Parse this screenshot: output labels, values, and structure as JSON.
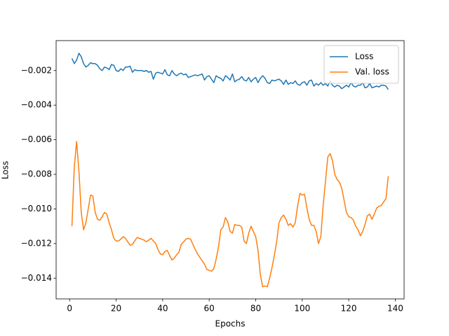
{
  "chart_data": {
    "type": "line",
    "xlabel": "Epochs",
    "ylabel": "Loss",
    "x": [
      1,
      2,
      3,
      4,
      5,
      6,
      7,
      8,
      9,
      10,
      11,
      12,
      13,
      14,
      15,
      16,
      17,
      18,
      19,
      20,
      21,
      22,
      23,
      24,
      25,
      26,
      27,
      28,
      29,
      30,
      31,
      32,
      33,
      34,
      35,
      36,
      37,
      38,
      39,
      40,
      41,
      42,
      43,
      44,
      45,
      46,
      47,
      48,
      49,
      50,
      51,
      52,
      53,
      54,
      55,
      56,
      57,
      58,
      59,
      60,
      61,
      62,
      63,
      64,
      65,
      66,
      67,
      68,
      69,
      70,
      71,
      72,
      73,
      74,
      75,
      76,
      77,
      78,
      79,
      80,
      81,
      82,
      83,
      84,
      85,
      86,
      87,
      88,
      89,
      90,
      91,
      92,
      93,
      94,
      95,
      96,
      97,
      98,
      99,
      100,
      101,
      102,
      103,
      104,
      105,
      106,
      107,
      108,
      109,
      110,
      111,
      112,
      113,
      114,
      115,
      116,
      117,
      118,
      119,
      120,
      121,
      122,
      123,
      124,
      125,
      126,
      127,
      128,
      129,
      130,
      131,
      132,
      133,
      134,
      135,
      136,
      137
    ],
    "series": [
      {
        "name": "Loss",
        "color": "#1f77b4",
        "values": [
          -0.0013,
          -0.0016,
          -0.0014,
          -0.001,
          -0.0012,
          -0.0016,
          -0.0018,
          -0.0017,
          -0.00155,
          -0.0016,
          -0.0016,
          -0.0017,
          -0.0019,
          -0.002,
          -0.0018,
          -0.00185,
          -0.00195,
          -0.00165,
          -0.0017,
          -0.002,
          -0.00205,
          -0.0019,
          -0.002,
          -0.0018,
          -0.0018,
          -0.00175,
          -0.0021,
          -0.00195,
          -0.002,
          -0.002,
          -0.002,
          -0.00205,
          -0.002,
          -0.0021,
          -0.00205,
          -0.0025,
          -0.00215,
          -0.0021,
          -0.00215,
          -0.0022,
          -0.00195,
          -0.00225,
          -0.0023,
          -0.002,
          -0.0022,
          -0.0023,
          -0.0022,
          -0.00215,
          -0.00225,
          -0.0022,
          -0.0024,
          -0.00235,
          -0.0023,
          -0.00225,
          -0.0023,
          -0.00225,
          -0.0022,
          -0.00255,
          -0.00235,
          -0.0023,
          -0.0025,
          -0.0027,
          -0.0023,
          -0.0024,
          -0.00245,
          -0.0026,
          -0.0023,
          -0.0024,
          -0.00255,
          -0.0022,
          -0.00265,
          -0.00255,
          -0.0025,
          -0.00235,
          -0.00255,
          -0.0026,
          -0.0024,
          -0.00265,
          -0.0025,
          -0.0024,
          -0.0027,
          -0.00245,
          -0.0023,
          -0.00245,
          -0.0027,
          -0.00275,
          -0.00255,
          -0.0026,
          -0.00255,
          -0.0025,
          -0.0026,
          -0.0028,
          -0.00255,
          -0.0028,
          -0.0027,
          -0.00275,
          -0.0026,
          -0.0028,
          -0.00285,
          -0.0027,
          -0.00265,
          -0.00285,
          -0.0026,
          -0.00255,
          -0.0029,
          -0.00275,
          -0.00285,
          -0.0027,
          -0.00285,
          -0.00275,
          -0.0029,
          -0.0026,
          -0.00285,
          -0.00295,
          -0.00285,
          -0.0029,
          -0.00305,
          -0.00295,
          -0.00285,
          -0.00295,
          -0.0027,
          -0.0029,
          -0.00295,
          -0.00285,
          -0.00285,
          -0.0027,
          -0.003,
          -0.00295,
          -0.00275,
          -0.003,
          -0.00295,
          -0.0029,
          -0.00295,
          -0.00285,
          -0.00285,
          -0.0029,
          -0.0031
        ]
      },
      {
        "name": "Val. loss",
        "color": "#ff7f0e",
        "values": [
          -0.011,
          -0.0076,
          -0.0061,
          -0.0078,
          -0.0102,
          -0.0112,
          -0.0108,
          -0.01,
          -0.0092,
          -0.00925,
          -0.0102,
          -0.0106,
          -0.01065,
          -0.01045,
          -0.0102,
          -0.0103,
          -0.0108,
          -0.0112,
          -0.0117,
          -0.01185,
          -0.01185,
          -0.01175,
          -0.0116,
          -0.0117,
          -0.0119,
          -0.0121,
          -0.01205,
          -0.01185,
          -0.01165,
          -0.0117,
          -0.01175,
          -0.0118,
          -0.0119,
          -0.0118,
          -0.0117,
          -0.01185,
          -0.012,
          -0.01235,
          -0.0126,
          -0.01265,
          -0.01245,
          -0.0124,
          -0.0127,
          -0.01295,
          -0.01285,
          -0.01265,
          -0.0125,
          -0.01205,
          -0.0119,
          -0.01175,
          -0.0117,
          -0.01175,
          -0.01205,
          -0.01235,
          -0.0126,
          -0.0128,
          -0.013,
          -0.0132,
          -0.0135,
          -0.01355,
          -0.0136,
          -0.01345,
          -0.0129,
          -0.0122,
          -0.0112,
          -0.01105,
          -0.0105,
          -0.01075,
          -0.0113,
          -0.0114,
          -0.0109,
          -0.01095,
          -0.01095,
          -0.01105,
          -0.01185,
          -0.012,
          -0.0114,
          -0.011,
          -0.0113,
          -0.0116,
          -0.0124,
          -0.0138,
          -0.0145,
          -0.01445,
          -0.0145,
          -0.014,
          -0.0134,
          -0.0127,
          -0.0119,
          -0.0108,
          -0.0105,
          -0.01035,
          -0.0106,
          -0.01095,
          -0.01085,
          -0.01105,
          -0.0108,
          -0.00985,
          -0.0091,
          -0.0092,
          -0.00915,
          -0.00995,
          -0.0106,
          -0.01095,
          -0.01095,
          -0.0113,
          -0.012,
          -0.0116,
          -0.0098,
          -0.0084,
          -0.007,
          -0.0068,
          -0.0072,
          -0.008,
          -0.0083,
          -0.00845,
          -0.0088,
          -0.0095,
          -0.0102,
          -0.01045,
          -0.0105,
          -0.01065,
          -0.011,
          -0.0112,
          -0.01155,
          -0.0113,
          -0.0109,
          -0.0104,
          -0.0103,
          -0.0106,
          -0.0103,
          -0.00995,
          -0.00985,
          -0.0098,
          -0.0096,
          -0.0094,
          -0.0081
        ]
      }
    ],
    "xlim": [
      -5.8,
      143.8
    ],
    "xticks": [
      0,
      20,
      40,
      60,
      80,
      100,
      120,
      140
    ],
    "ylim": [
      -0.0152,
      -0.00027
    ],
    "yticks": [
      {
        "value": -0.014,
        "label": "−0.014"
      },
      {
        "value": -0.012,
        "label": "−0.012"
      },
      {
        "value": -0.01,
        "label": "−0.010"
      },
      {
        "value": -0.008,
        "label": "−0.008"
      },
      {
        "value": -0.006,
        "label": "−0.006"
      },
      {
        "value": -0.004,
        "label": "−0.004"
      },
      {
        "value": -0.002,
        "label": "−0.002"
      }
    ],
    "legend": "upper right",
    "grid": false
  }
}
